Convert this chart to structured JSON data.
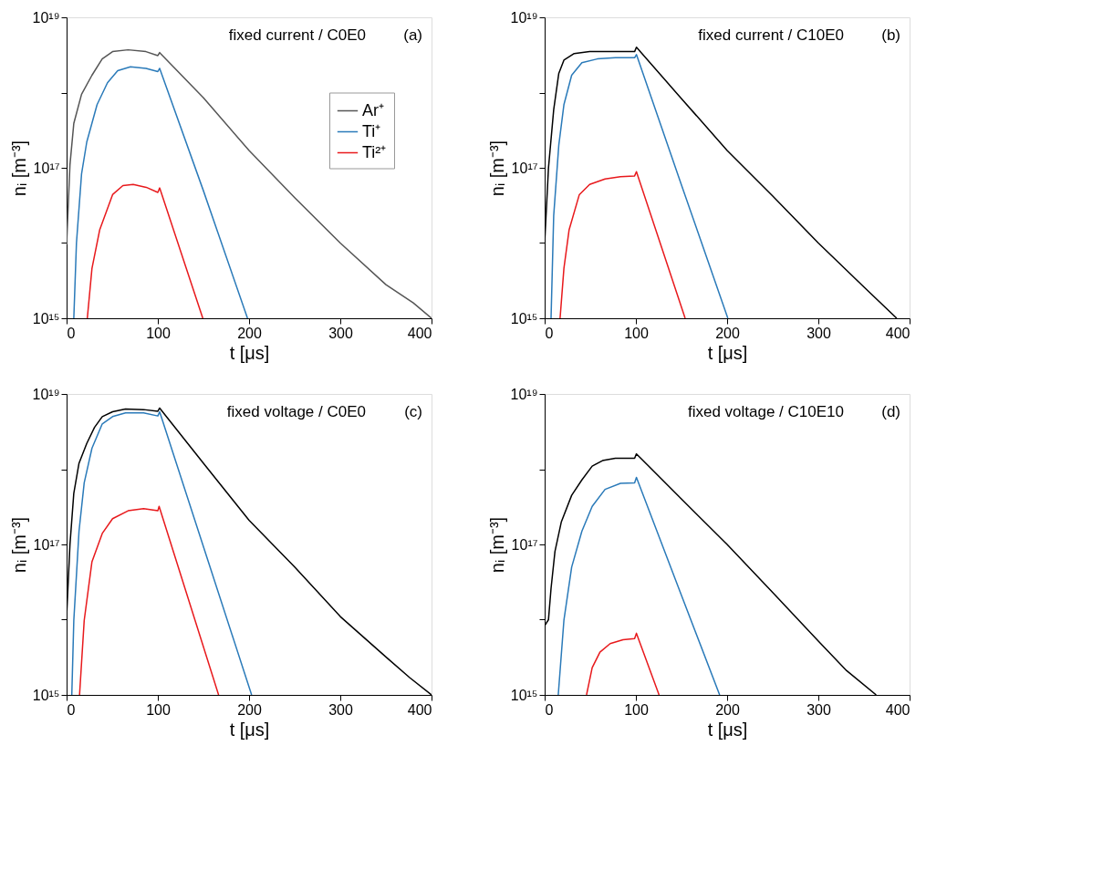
{
  "chart_data": [
    {
      "type": "line",
      "xlabel": "t [μs]",
      "ylabel": "nᵢ [m⁻³]",
      "log": "y",
      "legend": "right",
      "annotations": [
        "fixed current / C0E0",
        "(a)"
      ],
      "xlim": [
        0,
        400
      ],
      "xticks": [
        0,
        100,
        200,
        300,
        400
      ],
      "ylim": [
        1000000000000000.0,
        1e+19
      ],
      "yticks": [
        {
          "value": 1000000000000000.0,
          "label": "10¹⁵"
        },
        {
          "value": 1e+16,
          "label": null
        },
        {
          "value": 1e+17,
          "label": "10¹⁷"
        },
        {
          "value": 1e+18,
          "label": null
        },
        {
          "value": 1e+19,
          "label": "10¹⁹"
        }
      ],
      "series": [
        {
          "name": "Ar⁺",
          "color": "#555555",
          "x": [
            0,
            3.7,
            7.9,
            16.4,
            27.8,
            39,
            50.4,
            67.4,
            87,
            100,
            102,
            150,
            200,
            250,
            300,
            350,
            380,
            400
          ],
          "values": [
            9500000000000000.0,
            1.1e+17,
            3.9e+17,
            9.5e+17,
            1.7e+18,
            2.8e+18,
            3.5e+18,
            3.7e+18,
            3.5e+18,
            3.1e+18,
            3.4e+18,
            8.5e+17,
            1.7e+17,
            4e+16,
            1e+16,
            2800000000000000.0,
            1600000000000000.0,
            1000000000000000.0
          ]
        },
        {
          "name": "Ti⁺",
          "color": "#2a7ab9",
          "x": [
            7.9,
            10.8,
            16.4,
            22.1,
            33.4,
            44.8,
            56,
            70,
            87,
            100,
            102,
            149.6,
            198.3
          ],
          "values": [
            1000000000000000.0,
            1e+16,
            8.3e+16,
            2.2e+17,
            6.9e+17,
            1.35e+18,
            1.95e+18,
            2.2e+18,
            2.1e+18,
            1.9e+18,
            2.1e+18,
            5.1e+16,
            1000000000000000.0
          ]
        },
        {
          "name": "Ti²⁺",
          "color": "#e8191c",
          "x": [
            22.7,
            27.8,
            36.3,
            50.4,
            61.7,
            73,
            87.3,
            100,
            102,
            149.3
          ],
          "values": [
            1000000000000000.0,
            4600000000000000.0,
            1.5e+16,
            4.4e+16,
            5.8e+16,
            6e+16,
            5.5e+16,
            4.7e+16,
            5.4e+16,
            1000000000000000.0
          ]
        }
      ]
    },
    {
      "type": "line",
      "xlabel": "t [μs]",
      "ylabel": "nᵢ [m⁻³]",
      "log": "y",
      "annotations": [
        "fixed current / C10E0",
        "(b)"
      ],
      "xlim": [
        0,
        400
      ],
      "xticks": [
        0,
        100,
        200,
        300,
        400
      ],
      "ylim": [
        1000000000000000.0,
        1e+19
      ],
      "yticks": [
        {
          "value": 1000000000000000.0,
          "label": "10¹⁵"
        },
        {
          "value": 1e+16,
          "label": null
        },
        {
          "value": 1e+17,
          "label": "10¹⁷"
        },
        {
          "value": 1e+18,
          "label": null
        },
        {
          "value": 1e+19,
          "label": "10¹⁹"
        }
      ],
      "series": [
        {
          "color": "#000000",
          "x": [
            0,
            4.2,
            9.9,
            15.5,
            21.1,
            32.4,
            49.3,
            77.5,
            98.6,
            100.6,
            150,
            200,
            250,
            300,
            350,
            385.9
          ],
          "values": [
            1e+16,
            1e+17,
            5.9e+17,
            1.8e+18,
            2.7e+18,
            3.3e+18,
            3.5e+18,
            3.5e+18,
            3.5e+18,
            4e+18,
            8.3e+17,
            1.7e+17,
            4.2e+16,
            1e+16,
            2600000000000000.0,
            1000000000000000.0
          ]
        },
        {
          "color": "#2a7ab9",
          "x": [
            7,
            9.9,
            15.5,
            21.1,
            29.6,
            40.8,
            57.7,
            77.5,
            98.6,
            100.6,
            150,
            200.8
          ],
          "values": [
            1000000000000000.0,
            2.3e+16,
            2e+17,
            6.9e+17,
            1.7e+18,
            2.5e+18,
            2.8e+18,
            2.9e+18,
            2.9e+18,
            3.2e+18,
            5.9e+16,
            1000000000000000.0
          ]
        },
        {
          "color": "#e8191c",
          "x": [
            16.9,
            21.1,
            26.8,
            38,
            49.3,
            66.2,
            83.1,
            98.6,
            100.6,
            154
          ],
          "values": [
            1000000000000000.0,
            4600000000000000.0,
            1.5e+16,
            4.4e+16,
            6e+16,
            7.1e+16,
            7.6e+16,
            7.8e+16,
            8.9e+16,
            1000000000000000.0
          ]
        }
      ]
    },
    {
      "type": "line",
      "xlabel": "t [μs]",
      "ylabel": "nᵢ [m⁻³]",
      "log": "y",
      "annotations": [
        "fixed voltage / C0E0",
        "(c)"
      ],
      "xlim": [
        0,
        400
      ],
      "xticks": [
        0,
        100,
        200,
        300,
        400
      ],
      "ylim": [
        1000000000000000.0,
        1e+19
      ],
      "yticks": [
        {
          "value": 1000000000000000.0,
          "label": "10¹⁵"
        },
        {
          "value": 1e+16,
          "label": null
        },
        {
          "value": 1e+17,
          "label": "10¹⁷"
        },
        {
          "value": 1e+18,
          "label": null
        },
        {
          "value": 1e+19,
          "label": "10¹⁹"
        }
      ],
      "series": [
        {
          "color": "#000000",
          "x": [
            0,
            3.7,
            7.9,
            13.6,
            22.1,
            30.6,
            39.1,
            50.4,
            64.6,
            84.4,
            100,
            102,
            150,
            200,
            250,
            300,
            350,
            376,
            400
          ],
          "values": [
            1.1e+16,
            1e+17,
            4.8e+17,
            1.2e+18,
            2.2e+18,
            3.6e+18,
            5e+18,
            5.8e+18,
            6.3e+18,
            6.2e+18,
            5.9e+18,
            6.5e+18,
            1.2e+18,
            2.1e+17,
            5e+16,
            1.1e+16,
            3200000000000000.0,
            1700000000000000.0,
            1000000000000000.0
          ]
        },
        {
          "color": "#2a7ab9",
          "x": [
            5.7,
            7.9,
            13.6,
            19.3,
            27.8,
            39.1,
            50.4,
            64.6,
            84.4,
            100,
            102,
            150,
            202.8
          ],
          "values": [
            1000000000000000.0,
            9800000000000000.0,
            1.5e+17,
            6.6e+17,
            1.9e+18,
            4e+18,
            5e+18,
            5.6e+18,
            5.6e+18,
            5.1e+18,
            5.8e+18,
            9.3e+16,
            1000000000000000.0
          ]
        },
        {
          "color": "#e8191c",
          "x": [
            14.2,
            19.3,
            27.8,
            39.1,
            50.4,
            67.4,
            84.4,
            100,
            101.4,
            166.6
          ],
          "values": [
            1000000000000000.0,
            9800000000000000.0,
            5.9e+16,
            1.4e+17,
            2.2e+17,
            2.8e+17,
            3e+17,
            2.8e+17,
            3.2e+17,
            1000000000000000.0
          ]
        }
      ]
    },
    {
      "type": "line",
      "xlabel": "t [μs]",
      "ylabel": "nᵢ [m⁻³]",
      "log": "y",
      "annotations": [
        "fixed voltage / C10E10",
        "(d)"
      ],
      "xlim": [
        0,
        400
      ],
      "xticks": [
        0,
        100,
        200,
        300,
        400
      ],
      "ylim": [
        1000000000000000.0,
        1e+19
      ],
      "yticks": [
        {
          "value": 1000000000000000.0,
          "label": "10¹⁵"
        },
        {
          "value": 1e+16,
          "label": null
        },
        {
          "value": 1e+17,
          "label": "10¹⁷"
        },
        {
          "value": 1e+18,
          "label": null
        },
        {
          "value": 1e+19,
          "label": "10¹⁹"
        }
      ],
      "series": [
        {
          "color": "#000000",
          "x": [
            0,
            4.2,
            7,
            11.3,
            18.3,
            29.6,
            40.8,
            52.1,
            63.4,
            77.5,
            98.6,
            100.6,
            150,
            200,
            250,
            300,
            331,
            363.4
          ],
          "values": [
            8300000000000000.0,
            1e+16,
            2.6e+16,
            8.1e+16,
            2e+17,
            4.5e+17,
            7.2e+17,
            1.1e+18,
            1.3e+18,
            1.4e+18,
            1.4e+18,
            1.6e+18,
            4e+17,
            1e+17,
            2.3e+16,
            5200000000000000.0,
            2100000000000000.0,
            1000000000000000.0
          ]
        },
        {
          "color": "#2a7ab9",
          "x": [
            14.9,
            21.1,
            29.6,
            40.8,
            52.1,
            66.2,
            83.1,
            98.6,
            100.6,
            150,
            191.8
          ],
          "values": [
            1000000000000000.0,
            9800000000000000.0,
            5e+16,
            1.5e+17,
            3.2e+17,
            5.4e+17,
            6.5e+17,
            6.6e+17,
            7.8e+17,
            2.1e+16,
            1000000000000000.0
          ]
        },
        {
          "color": "#e8191c",
          "x": [
            45.9,
            52.1,
            60.6,
            71.8,
            85.9,
            98.6,
            100.6,
            125.4
          ],
          "values": [
            1000000000000000.0,
            2300000000000000.0,
            3700000000000000.0,
            4800000000000000.0,
            5400000000000000.0,
            5600000000000000.0,
            6600000000000000.0,
            1000000000000000.0
          ]
        }
      ]
    }
  ]
}
